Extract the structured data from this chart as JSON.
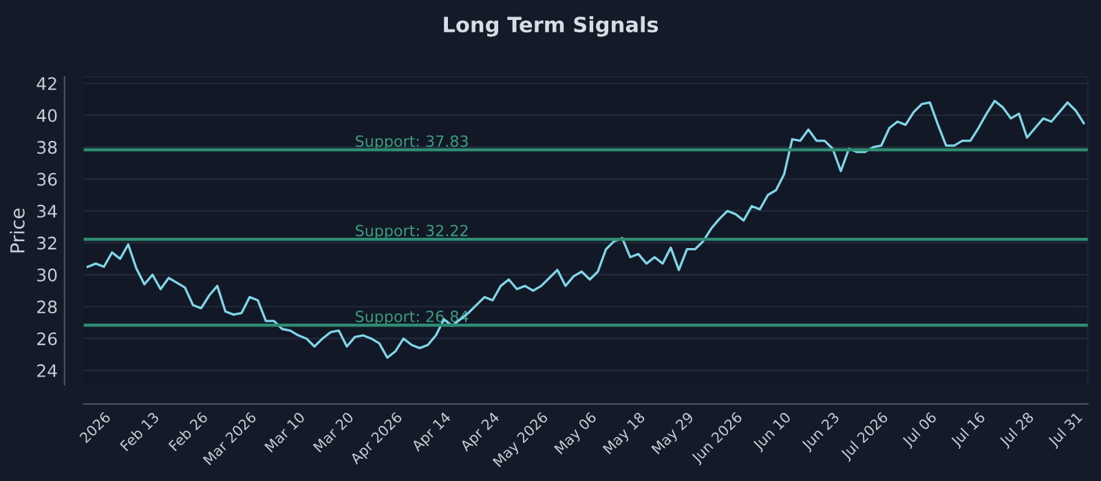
{
  "chart_data": {
    "type": "line",
    "title": "Long Term Signals",
    "ylabel": "Price",
    "categories": [
      null,
      null,
      "2026",
      null,
      null,
      null,
      null,
      null,
      "Feb 13",
      null,
      null,
      null,
      null,
      null,
      "Feb 26",
      null,
      null,
      null,
      null,
      null,
      "Mar 2026",
      null,
      null,
      null,
      null,
      null,
      "Mar 10",
      null,
      null,
      null,
      null,
      null,
      "Mar 20",
      null,
      null,
      null,
      null,
      null,
      "Apr 2026",
      null,
      null,
      null,
      null,
      null,
      "Apr 14",
      null,
      null,
      null,
      null,
      null,
      "Apr 24",
      null,
      null,
      null,
      null,
      null,
      "May 2026",
      null,
      null,
      null,
      null,
      null,
      "May 06",
      null,
      null,
      null,
      null,
      null,
      "May 18",
      null,
      null,
      null,
      null,
      null,
      "May 29",
      null,
      null,
      null,
      null,
      null,
      "Jun 2026",
      null,
      null,
      null,
      null,
      null,
      "Jun 10",
      null,
      null,
      null,
      null,
      null,
      "Jun 23",
      null,
      null,
      null,
      null,
      null,
      "Jul 2026",
      null,
      null,
      null,
      null,
      null,
      "Jul 06",
      null,
      null,
      null,
      null,
      null,
      "Jul 16",
      null,
      null,
      null,
      null,
      null,
      "Jul 28",
      null,
      null,
      null,
      null,
      null,
      "Jul 31",
      null
    ],
    "series": [
      {
        "color": "#7fd6e6",
        "values": [
          30.5,
          30.7,
          30.5,
          31.4,
          31.0,
          31.9,
          30.4,
          29.4,
          30.0,
          29.1,
          29.8,
          29.5,
          29.2,
          28.1,
          27.9,
          28.7,
          29.3,
          27.7,
          27.5,
          27.6,
          28.6,
          28.4,
          27.1,
          27.1,
          26.6,
          26.5,
          26.2,
          26.0,
          25.5,
          26.0,
          26.4,
          26.5,
          25.5,
          26.1,
          26.2,
          26.0,
          25.7,
          24.8,
          25.2,
          26.0,
          25.6,
          25.4,
          25.6,
          26.2,
          27.2,
          26.8,
          27.2,
          27.6,
          28.1,
          28.6,
          28.4,
          29.3,
          29.7,
          29.1,
          29.3,
          29.0,
          29.3,
          29.8,
          30.3,
          29.3,
          29.9,
          30.2,
          29.7,
          30.2,
          31.6,
          32.1,
          32.3,
          31.1,
          31.3,
          30.7,
          31.1,
          30.7,
          31.7,
          30.3,
          31.6,
          31.6,
          32.1,
          32.9,
          33.5,
          34.0,
          33.8,
          33.4,
          34.3,
          34.1,
          35.0,
          35.3,
          36.3,
          38.5,
          38.4,
          39.1,
          38.4,
          38.4,
          37.9,
          36.5,
          37.9,
          37.7,
          37.7,
          38.0,
          38.1,
          39.2,
          39.6,
          39.4,
          40.2,
          40.7,
          40.8,
          39.4,
          38.1,
          38.1,
          38.4,
          38.4,
          39.2,
          40.1,
          40.9,
          40.5,
          39.8,
          40.1,
          38.6,
          39.2,
          39.8,
          39.6,
          40.2,
          40.8,
          40.3,
          39.5
        ]
      }
    ],
    "ylim": [
      23.1,
      42.4
    ],
    "yticks": [
      24,
      26,
      28,
      30,
      32,
      34,
      36,
      38,
      40,
      42
    ],
    "grid": "y",
    "ref_lines": [
      {
        "axis": "y",
        "value": 37.83,
        "label": "Support: 37.83",
        "color": "#2e8c72"
      },
      {
        "axis": "y",
        "value": 32.22,
        "label": "Support: 32.22",
        "color": "#2e8c72"
      },
      {
        "axis": "y",
        "value": 26.84,
        "label": "Support: 26.84",
        "color": "#2e8c72"
      }
    ]
  }
}
